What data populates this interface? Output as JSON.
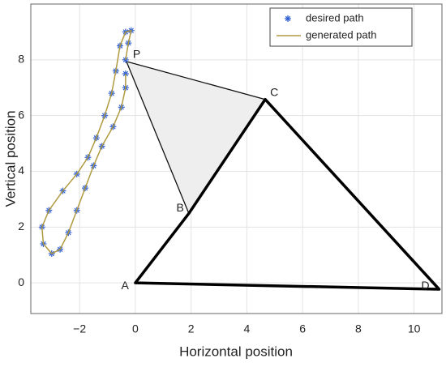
{
  "chart_data": {
    "type": "path-plot",
    "xlabel": "Horizontal position",
    "ylabel": "Vertical position",
    "xlim": [
      -3.75,
      11
    ],
    "ylim": [
      -1.1,
      10
    ],
    "xticks": [
      {
        "value": -2,
        "label": "−2"
      },
      0,
      2,
      4,
      6,
      8,
      10
    ],
    "yticks": [
      0,
      2,
      4,
      6,
      8
    ],
    "grid": true,
    "legend": "upper right",
    "points": [
      {
        "label": "P",
        "x": -0.32,
        "y": 7.94
      },
      {
        "label": "B",
        "x": 1.92,
        "y": 2.49
      },
      {
        "label": "C",
        "x": 4.66,
        "y": 6.58
      },
      {
        "label": "A",
        "x": 0,
        "y": 0
      },
      {
        "label": "D",
        "x": 10.9,
        "y": -0.23
      }
    ],
    "series": [
      {
        "name": "desired path",
        "color": "#2f5fd0",
        "marker": "asterisk",
        "x": [
          -0.35,
          -0.25,
          -0.15,
          -0.35,
          -0.55,
          -0.7,
          -0.85,
          -1.1,
          -1.4,
          -1.7,
          -2.1,
          -2.6,
          -3.1,
          -3.35,
          -3.3,
          -3.0,
          -2.7,
          -2.4,
          -2.1,
          -1.8,
          -1.5,
          -1.2,
          -0.8,
          -0.5,
          -0.35,
          -0.35
        ],
        "y": [
          8.0,
          8.6,
          9.05,
          9.0,
          8.5,
          7.6,
          6.8,
          6.0,
          5.2,
          4.5,
          3.9,
          3.3,
          2.6,
          2.0,
          1.4,
          1.05,
          1.2,
          1.8,
          2.6,
          3.4,
          4.2,
          4.9,
          5.6,
          6.3,
          7.0,
          7.5
        ]
      },
      {
        "name": "generated path",
        "color": "#b09a40",
        "marker": "line",
        "x": [
          -0.35,
          -0.25,
          -0.15,
          -0.35,
          -0.55,
          -0.7,
          -0.85,
          -1.1,
          -1.4,
          -1.7,
          -2.1,
          -2.6,
          -3.1,
          -3.35,
          -3.3,
          -3.0,
          -2.7,
          -2.4,
          -2.1,
          -1.8,
          -1.5,
          -1.2,
          -0.8,
          -0.5,
          -0.35,
          -0.35
        ],
        "y": [
          8.0,
          8.6,
          9.05,
          9.0,
          8.5,
          7.6,
          6.8,
          6.0,
          5.2,
          4.5,
          3.9,
          3.3,
          2.6,
          2.0,
          1.4,
          1.05,
          1.2,
          1.8,
          2.6,
          3.4,
          4.2,
          4.9,
          5.6,
          6.3,
          7.0,
          7.5
        ]
      }
    ]
  }
}
